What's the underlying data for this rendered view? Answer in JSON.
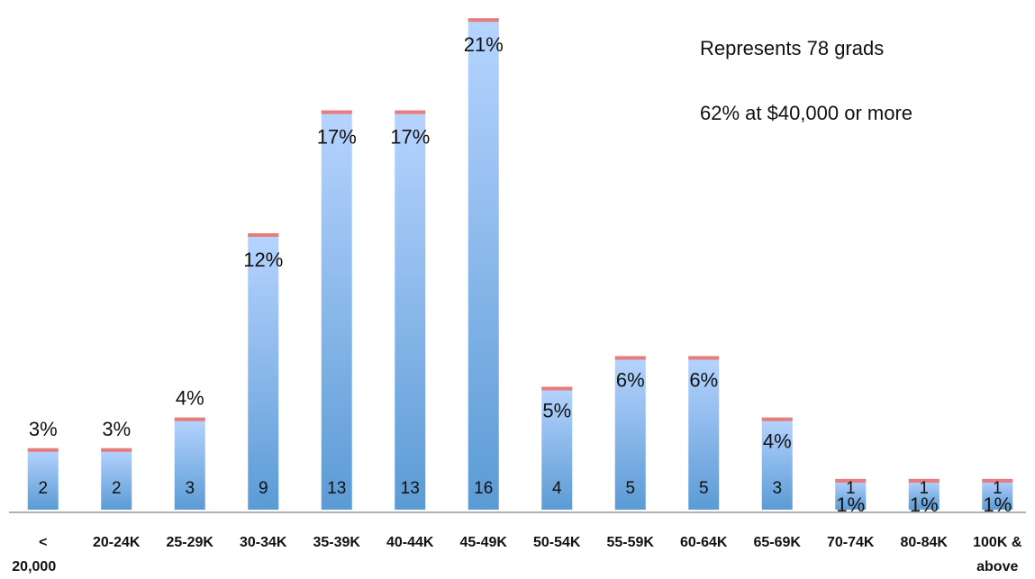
{
  "chart_data": {
    "type": "bar",
    "categories": [
      "<\n20,000",
      "20-24K",
      "25-29K",
      "30-34K",
      "35-39K",
      "40-44K",
      "45-49K",
      "50-54K",
      "55-59K",
      "60-64K",
      "65-69K",
      "70-74K",
      "80-84K",
      "100K &\nabove"
    ],
    "values": [
      2,
      2,
      3,
      9,
      13,
      13,
      16,
      4,
      5,
      5,
      3,
      1,
      1,
      1
    ],
    "percent_labels": [
      "3%",
      "3%",
      "4%",
      "12%",
      "17%",
      "17%",
      "21%",
      "5%",
      "6%",
      "6%",
      "4%",
      "1%",
      "1%",
      "1%"
    ],
    "title": "",
    "xlabel": "",
    "ylabel": "",
    "ylim": [
      0,
      16.3
    ],
    "grid": false,
    "legend": "none",
    "colors": {
      "bar_top": "#b7d4ff",
      "bar_bottom": "#5b9bd5",
      "bar_cap": "#e97b7b",
      "axis": "#999999",
      "text": "#111111"
    }
  },
  "annotations": {
    "total_note": "Represents 78 grads",
    "share_note": "62% at $40,000 or more"
  }
}
